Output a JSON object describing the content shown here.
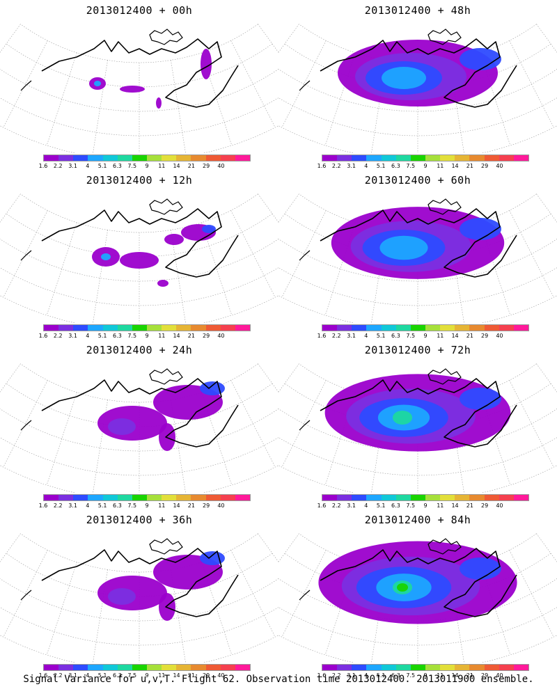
{
  "colors": [
    "#9b00cc",
    "#7b2fe0",
    "#2e4bff",
    "#1ea7ff",
    "#10c8d8",
    "#1ed8a0",
    "#19d400",
    "#a6e03a",
    "#e2df3a",
    "#e6b535",
    "#e78a2f",
    "#ef5a35",
    "#f5404f",
    "#ff1a9a"
  ],
  "colorbar_labels": [
    "1.6",
    "2.2",
    "3.1",
    "4",
    "5.1",
    "6.3",
    "7.5",
    "9",
    "11",
    "14",
    "21",
    "29",
    "40"
  ],
  "panels": [
    {
      "title": "2013012400 + 00h",
      "level": 0
    },
    {
      "title": "2013012400 + 48h",
      "level": 3
    },
    {
      "title": "2013012400 + 12h",
      "level": 1
    },
    {
      "title": "2013012400 + 60h",
      "level": 4
    },
    {
      "title": "2013012400 + 24h",
      "level": 2
    },
    {
      "title": "2013012400 + 72h",
      "level": 5
    },
    {
      "title": "2013012400 + 36h",
      "level": 2
    },
    {
      "title": "2013012400 + 84h",
      "level": 6
    }
  ],
  "footer": "Signal Variance for u,v,T. Flight 62. Observation time 2013012400. 2013011900 ensemble."
}
